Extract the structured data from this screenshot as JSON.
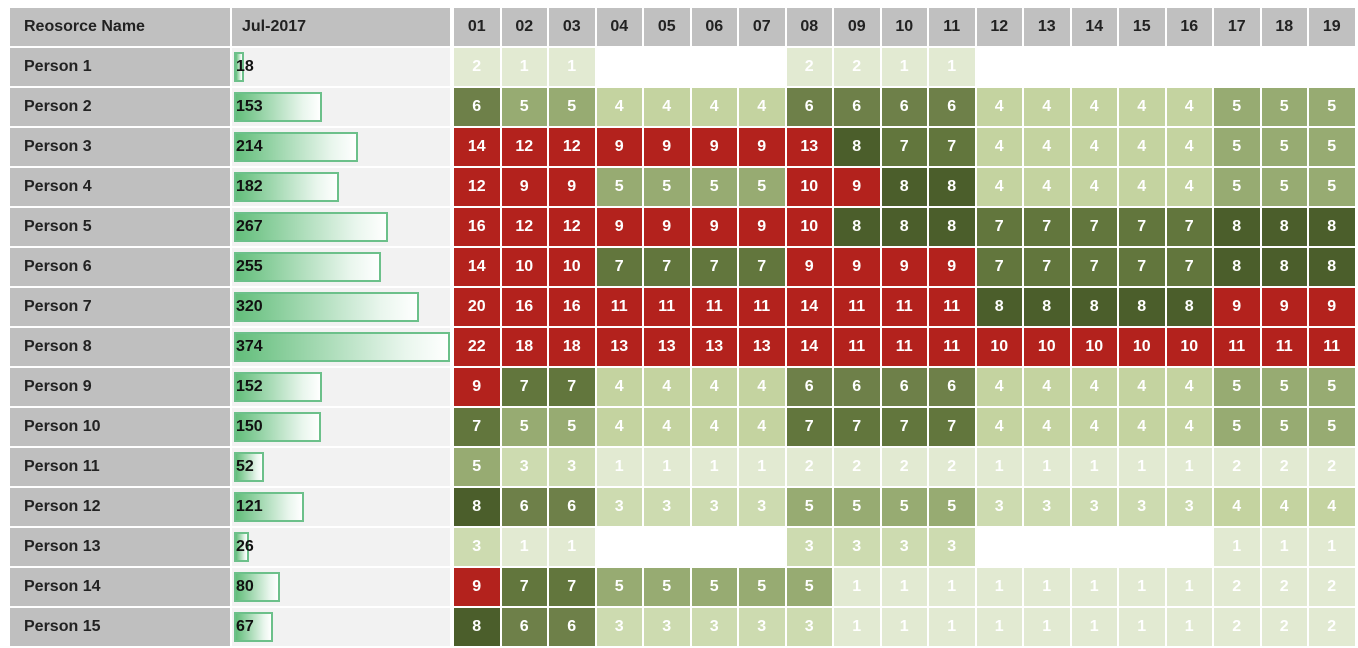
{
  "table": {
    "headers": [
      "Reosorce Name",
      "Jul-2017",
      "01",
      "02",
      "03",
      "04",
      "05",
      "06",
      "07",
      "08",
      "09",
      "10",
      "11",
      "12",
      "13",
      "14",
      "15",
      "16",
      "17",
      "18",
      "19"
    ],
    "rows": [
      {
        "name": "Person 1",
        "total": 18,
        "days": [
          2,
          1,
          1,
          null,
          null,
          null,
          null,
          2,
          2,
          1,
          1,
          null,
          null,
          null,
          null,
          null,
          null,
          null,
          null
        ]
      },
      {
        "name": "Person 2",
        "total": 153,
        "days": [
          6,
          5,
          5,
          4,
          4,
          4,
          4,
          6,
          6,
          6,
          6,
          4,
          4,
          4,
          4,
          4,
          5,
          5,
          5
        ]
      },
      {
        "name": "Person 3",
        "total": 214,
        "days": [
          14,
          12,
          12,
          9,
          9,
          9,
          9,
          13,
          8,
          7,
          7,
          4,
          4,
          4,
          4,
          4,
          5,
          5,
          5
        ]
      },
      {
        "name": "Person 4",
        "total": 182,
        "days": [
          12,
          9,
          9,
          5,
          5,
          5,
          5,
          10,
          9,
          8,
          8,
          4,
          4,
          4,
          4,
          4,
          5,
          5,
          5
        ]
      },
      {
        "name": "Person 5",
        "total": 267,
        "days": [
          16,
          12,
          12,
          9,
          9,
          9,
          9,
          10,
          8,
          8,
          8,
          7,
          7,
          7,
          7,
          7,
          8,
          8,
          8
        ]
      },
      {
        "name": "Person 6",
        "total": 255,
        "days": [
          14,
          10,
          10,
          7,
          7,
          7,
          7,
          9,
          9,
          9,
          9,
          7,
          7,
          7,
          7,
          7,
          8,
          8,
          8
        ]
      },
      {
        "name": "Person 7",
        "total": 320,
        "days": [
          20,
          16,
          16,
          11,
          11,
          11,
          11,
          14,
          11,
          11,
          11,
          8,
          8,
          8,
          8,
          8,
          9,
          9,
          9
        ]
      },
      {
        "name": "Person 8",
        "total": 374,
        "days": [
          22,
          18,
          18,
          13,
          13,
          13,
          13,
          14,
          11,
          11,
          11,
          10,
          10,
          10,
          10,
          10,
          11,
          11,
          11
        ]
      },
      {
        "name": "Person 9",
        "total": 152,
        "days": [
          9,
          7,
          7,
          4,
          4,
          4,
          4,
          6,
          6,
          6,
          6,
          4,
          4,
          4,
          4,
          4,
          5,
          5,
          5
        ]
      },
      {
        "name": "Person 10",
        "total": 150,
        "days": [
          7,
          5,
          5,
          4,
          4,
          4,
          4,
          7,
          7,
          7,
          7,
          4,
          4,
          4,
          4,
          4,
          5,
          5,
          5
        ]
      },
      {
        "name": "Person 11",
        "total": 52,
        "days": [
          5,
          3,
          3,
          1,
          1,
          1,
          1,
          2,
          2,
          2,
          2,
          1,
          1,
          1,
          1,
          1,
          2,
          2,
          2
        ]
      },
      {
        "name": "Person 12",
        "total": 121,
        "days": [
          8,
          6,
          6,
          3,
          3,
          3,
          3,
          5,
          5,
          5,
          5,
          3,
          3,
          3,
          3,
          3,
          4,
          4,
          4
        ]
      },
      {
        "name": "Person 13",
        "total": 26,
        "days": [
          3,
          1,
          1,
          null,
          null,
          null,
          null,
          3,
          3,
          3,
          3,
          null,
          null,
          null,
          null,
          null,
          1,
          1,
          1
        ]
      },
      {
        "name": "Person 14",
        "total": 80,
        "days": [
          9,
          7,
          7,
          5,
          5,
          5,
          5,
          5,
          1,
          1,
          1,
          1,
          1,
          1,
          1,
          1,
          2,
          2,
          2
        ]
      },
      {
        "name": "Person 15",
        "total": 67,
        "days": [
          8,
          6,
          6,
          3,
          3,
          3,
          3,
          3,
          1,
          1,
          1,
          1,
          1,
          1,
          1,
          1,
          2,
          2,
          2
        ]
      }
    ]
  }
}
